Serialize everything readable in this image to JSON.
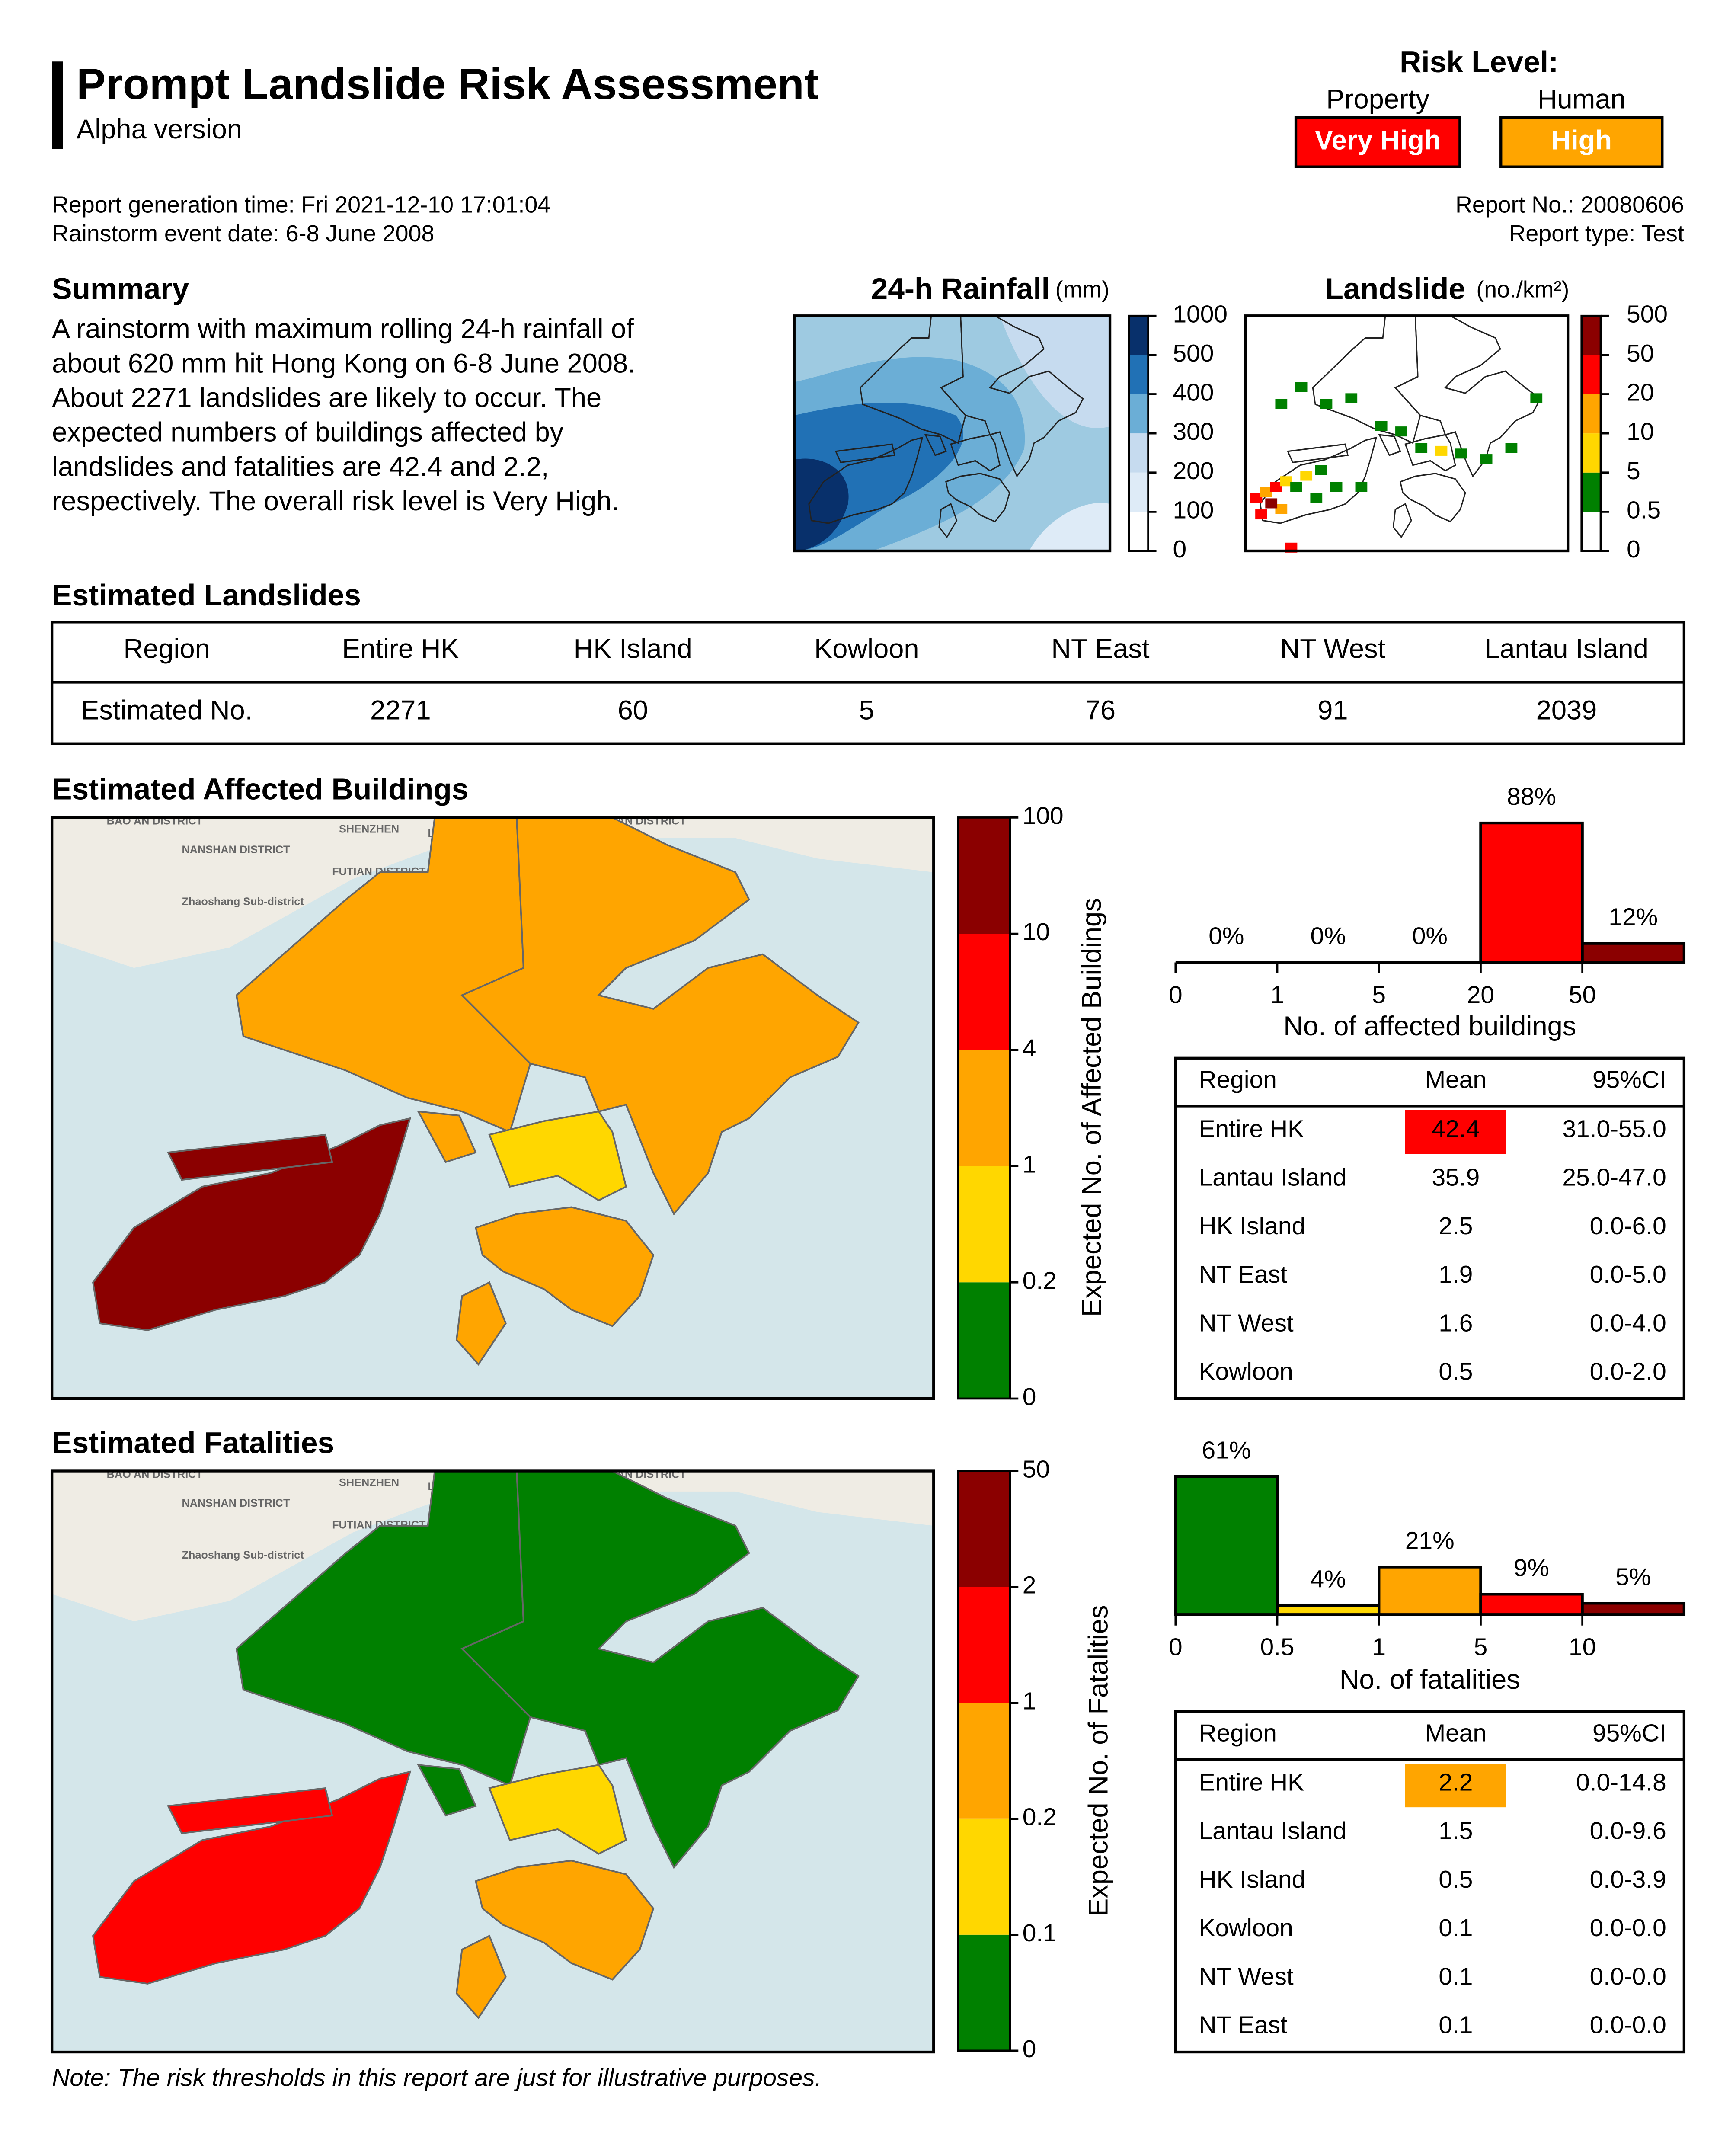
{
  "header": {
    "title": "Prompt Landslide Risk Assessment",
    "subtitle": "Alpha version"
  },
  "risk_level": {
    "title": "Risk Level:",
    "property": {
      "label": "Property",
      "level": "Very High"
    },
    "human": {
      "label": "Human",
      "level": "High"
    }
  },
  "report_info": {
    "generation_time": "Report generation time: Fri 2021-12-10 17:01:04",
    "event_date": "Rainstorm event date: 6-8 June 2008",
    "report_no": "Report No.: 20080606",
    "report_type": "Report type: Test"
  },
  "summary": {
    "title": "Summary",
    "lines": [
      "A rainstorm with maximum rolling 24-h rainfall of",
      "about 620 mm hit Hong Kong on 6-8 June 2008.",
      "About 2271 landslides are likely to occur. The",
      "expected numbers of buildings affected by",
      "landslides and fatalities are 42.4 and 2.2,",
      "respectively. The overall risk level is Very High."
    ]
  },
  "rainfall_map": {
    "title": "24-h Rainfall",
    "unit": "(mm)",
    "colorbar_ticks": [
      0,
      100,
      200,
      300,
      400,
      500,
      1000
    ]
  },
  "landslide_map": {
    "title": "Landslide",
    "unit": "(no./km²)",
    "colorbar_ticks": [
      0,
      0.5,
      5,
      10,
      20,
      50,
      500
    ]
  },
  "estimated_landslides": {
    "title": "Estimated Landslides",
    "header": [
      "Region",
      "Entire HK",
      "HK Island",
      "Kowloon",
      "NT East",
      "NT West",
      "Lantau Island"
    ],
    "rows": [
      [
        "Estimated No.",
        "2271",
        "60",
        "5",
        "76",
        "91",
        "2039"
      ]
    ]
  },
  "basemap_labels": [
    "BAO AN DISTRICT",
    "SHENZHEN",
    "LUOHU DISTRICT",
    "YANTIAN DISTRICT",
    "NANSHAN DISTRICT",
    "FUTIAN DISTRICT",
    "Zhaoshang Sub-district"
  ],
  "affected_buildings": {
    "title": "Estimated Affected Buildings",
    "colorbar_label": "Expected No. of Affected Buildings",
    "colorbar_ticks": [
      0,
      0.2,
      1,
      4,
      10,
      100
    ],
    "histogram": {
      "xticks": [
        0,
        1,
        5,
        20,
        50
      ],
      "values": [
        0,
        0,
        0,
        88,
        12
      ],
      "value_labels": [
        "0%",
        "0%",
        "0%",
        "88%",
        "12%"
      ],
      "colors": [
        "#008000",
        "#ffd700",
        "#ffa500",
        "#ff0000",
        "#8b0000"
      ],
      "xlabel": "No. of affected buildings"
    },
    "table": {
      "header": [
        "Region",
        "Mean",
        "95%CI"
      ],
      "rows": [
        [
          "Entire HK",
          "42.4",
          "31.0-55.0"
        ],
        [
          "Lantau Island",
          "35.9",
          "25.0-47.0"
        ],
        [
          "HK Island",
          "2.5",
          "0.0-6.0"
        ],
        [
          "NT East",
          "1.9",
          "0.0-5.0"
        ],
        [
          "NT West",
          "1.6",
          "0.0-4.0"
        ],
        [
          "Kowloon",
          "0.5",
          "0.0-2.0"
        ]
      ]
    }
  },
  "fatalities": {
    "title": "Estimated Fatalities",
    "colorbar_label": "Expected No. of Fatalities",
    "colorbar_ticks": [
      0,
      0.1,
      0.2,
      1,
      2,
      50
    ],
    "histogram": {
      "xticks": [
        0,
        0.5,
        1,
        5,
        10
      ],
      "values": [
        61,
        4,
        21,
        9,
        5
      ],
      "value_labels": [
        "61%",
        "4%",
        "21%",
        "9%",
        "5%"
      ],
      "colors": [
        "#008000",
        "#ffd700",
        "#ffa500",
        "#ff0000",
        "#8b0000"
      ],
      "xlabel": "No. of fatalities"
    },
    "table": {
      "header": [
        "Region",
        "Mean",
        "95%CI"
      ],
      "rows": [
        [
          "Entire HK",
          "2.2",
          "0.0-14.8"
        ],
        [
          "Lantau Island",
          "1.5",
          "0.0-9.6"
        ],
        [
          "HK Island",
          "0.5",
          "0.0-3.9"
        ],
        [
          "Kowloon",
          "0.1",
          "0.0-0.0"
        ],
        [
          "NT West",
          "0.1",
          "0.0-0.0"
        ],
        [
          "NT East",
          "0.1",
          "0.0-0.0"
        ]
      ]
    }
  },
  "note": "Note: The risk thresholds in this report are just for illustrative purposes."
}
